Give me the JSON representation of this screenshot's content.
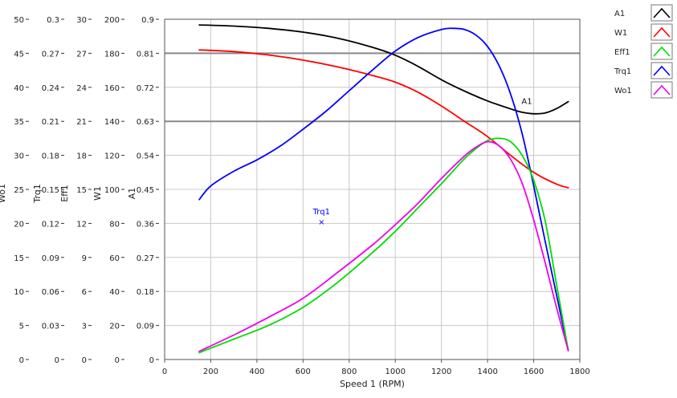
{
  "chart_data": {
    "type": "line",
    "x_axis": {
      "label": "Speed 1 (RPM)",
      "range": [
        0,
        1800
      ],
      "ticks": [
        0,
        200,
        400,
        600,
        800,
        1000,
        1200,
        1400,
        1600,
        1800
      ]
    },
    "y_axes": [
      {
        "label": "Wo1",
        "range": [
          0,
          50
        ],
        "ticks": [
          "0",
          "5",
          "10",
          "15",
          "20",
          "25",
          "30",
          "35",
          "40",
          "45",
          "50"
        ]
      },
      {
        "label": "Trq1",
        "range": [
          0,
          0.3
        ],
        "ticks": [
          "0",
          "0.03",
          "0.06",
          "0.09",
          "0.12",
          "0.15",
          "0.18",
          "0.21",
          "0.24",
          "0.27",
          "0.3"
        ]
      },
      {
        "label": "Eff1",
        "range": [
          0,
          30
        ],
        "ticks": [
          "0",
          "3",
          "6",
          "9",
          "12",
          "15",
          "18",
          "21",
          "24",
          "27",
          "30"
        ]
      },
      {
        "label": "W1",
        "range": [
          0,
          200
        ],
        "ticks": [
          "0",
          "20",
          "40",
          "60",
          "80",
          "100",
          "120",
          "140",
          "160",
          "180",
          "200"
        ]
      },
      {
        "label": "A1",
        "range": [
          0,
          0.9
        ],
        "ticks": [
          "0",
          "0.09",
          "0.18",
          "0.27",
          "0.36",
          "0.45",
          "0.54",
          "0.63",
          "0.72",
          "0.81",
          "0.9"
        ]
      }
    ],
    "reference_lines_A1": [
      0.81,
      0.63
    ],
    "grid": true,
    "legend_position": "right",
    "series": [
      {
        "name": "A1",
        "axis": "A1",
        "color": "#000000",
        "x": [
          150,
          300,
          450,
          600,
          750,
          900,
          1000,
          1100,
          1200,
          1300,
          1400,
          1500,
          1550,
          1600,
          1650,
          1700,
          1750
        ],
        "y": [
          0.885,
          0.882,
          0.876,
          0.866,
          0.85,
          0.826,
          0.805,
          0.775,
          0.74,
          0.71,
          0.684,
          0.663,
          0.654,
          0.65,
          0.652,
          0.664,
          0.682
        ]
      },
      {
        "name": "W1",
        "axis": "W1",
        "color": "#ff0000",
        "x": [
          150,
          300,
          450,
          600,
          750,
          900,
          1000,
          1100,
          1200,
          1300,
          1400,
          1500,
          1600,
          1700,
          1750
        ],
        "y": [
          182,
          181,
          179,
          176,
          172,
          167,
          163,
          157,
          149,
          140,
          131,
          120,
          110,
          103,
          101
        ]
      },
      {
        "name": "Eff1",
        "axis": "Eff1",
        "color": "#00dd00",
        "x": [
          150,
          300,
          450,
          600,
          750,
          900,
          1000,
          1100,
          1200,
          1300,
          1350,
          1400,
          1450,
          1500,
          1550,
          1600,
          1650,
          1700,
          1750
        ],
        "y": [
          0.6,
          1.8,
          3.0,
          4.6,
          6.8,
          9.4,
          11.3,
          13.4,
          15.5,
          17.7,
          18.6,
          19.3,
          19.5,
          19.2,
          18.0,
          15.8,
          12.2,
          6.5,
          0.8
        ]
      },
      {
        "name": "Trq1",
        "axis": "Trq1",
        "color": "#0000ff",
        "x": [
          150,
          200,
          300,
          400,
          500,
          600,
          700,
          800,
          900,
          1000,
          1100,
          1200,
          1250,
          1300,
          1350,
          1400,
          1450,
          1500,
          1550,
          1600,
          1650,
          1700,
          1750
        ],
        "y": [
          0.141,
          0.153,
          0.166,
          0.176,
          0.188,
          0.203,
          0.219,
          0.237,
          0.255,
          0.272,
          0.284,
          0.291,
          0.292,
          0.291,
          0.286,
          0.276,
          0.259,
          0.234,
          0.199,
          0.153,
          0.104,
          0.056,
          0.008
        ]
      },
      {
        "name": "Wo1",
        "axis": "Wo1",
        "color": "#ee00ee",
        "x": [
          150,
          300,
          450,
          600,
          750,
          900,
          1000,
          1100,
          1200,
          1300,
          1350,
          1400,
          1450,
          1500,
          1550,
          1600,
          1650,
          1700,
          1750
        ],
        "y": [
          1.2,
          3.6,
          6.2,
          9.0,
          12.8,
          16.8,
          19.8,
          23.0,
          26.6,
          29.9,
          31.2,
          32.0,
          31.4,
          29.4,
          25.9,
          20.5,
          14.2,
          7.5,
          1.3
        ]
      }
    ],
    "annotations": [
      {
        "text": "A1",
        "series": "A1",
        "x": 1610,
        "y": 0.668
      },
      {
        "text": "Trq1",
        "series": "Trq1",
        "x": 680,
        "y": 0.121,
        "marker": "×"
      }
    ]
  }
}
